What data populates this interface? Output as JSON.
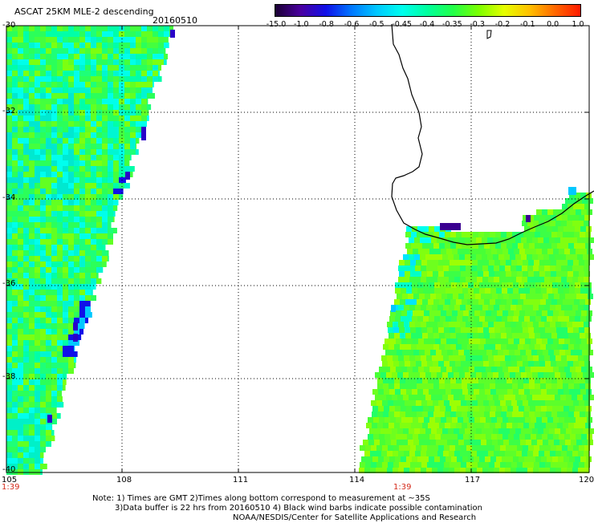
{
  "header": {
    "title": "ASCAT 25KM MLE-2 descending",
    "date": "20160510"
  },
  "colorbar": {
    "labels": [
      "-15.0",
      "-1.0",
      "-0.8",
      "-0.6",
      "-0.5",
      "-0.45",
      "-0.4",
      "-0.35",
      "-0.3",
      "-0.2",
      "-0.1",
      "0.0",
      "1.0"
    ],
    "colors": [
      "#1a0033",
      "#4a00a0",
      "#1010e8",
      "#0078ff",
      "#00c8ff",
      "#00ffee",
      "#00ff9c",
      "#22ff48",
      "#7cff00",
      "#e6ff00",
      "#ffc000",
      "#ff6800",
      "#ff1a00"
    ]
  },
  "map": {
    "lat_labels": [
      "-30",
      "-32",
      "-34",
      "-36",
      "-38",
      "-40"
    ],
    "lon_labels": [
      "105",
      "108",
      "111",
      "114",
      "117",
      "120"
    ],
    "time_labels": [
      "1:39",
      "1:39"
    ],
    "coastline_color": "#000000",
    "gridline_style": "dotted"
  },
  "footer": {
    "line1": "Note: 1) Times are GMT 2)Times along bottom correspond to measurement at ~35S",
    "line2": "3)Data buffer is 22 hrs from 20160510 4) Black wind barbs indicate possible contamination",
    "line3": "NOAA/NESDIS/Center for Satellite Applications and Research"
  }
}
